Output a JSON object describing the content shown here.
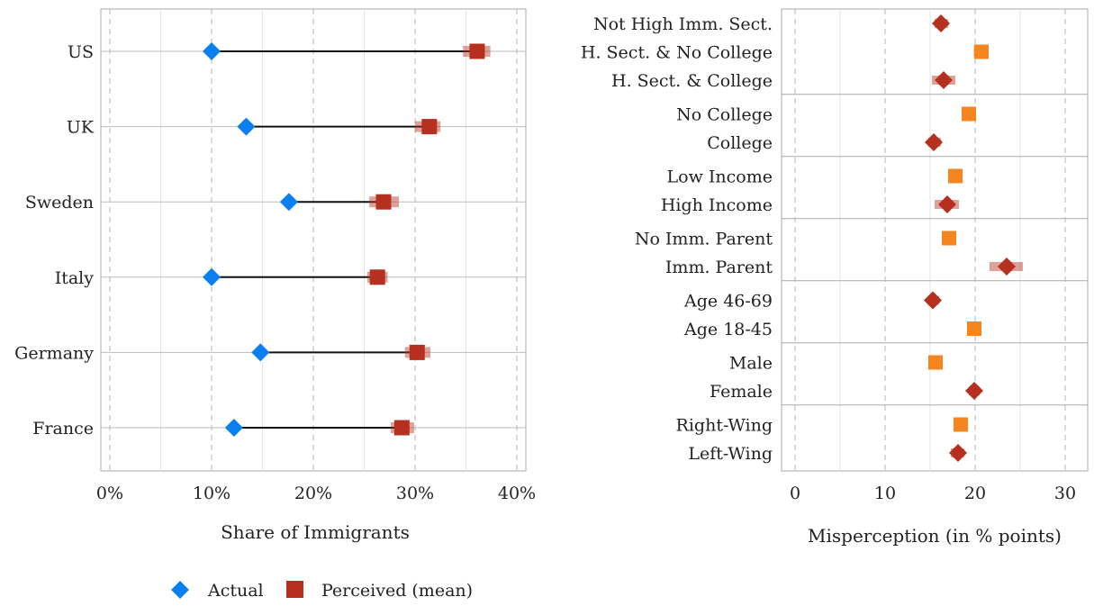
{
  "chart_data": [
    {
      "type": "dumbbell",
      "xlabel": "Share of Immigrants",
      "xlim": [
        0,
        40
      ],
      "xticks": [
        0,
        10,
        20,
        30,
        40
      ],
      "xtick_labels": [
        "0%",
        "10%",
        "20%",
        "30%",
        "40%"
      ],
      "grid": true,
      "categories": [
        "US",
        "UK",
        "Sweden",
        "Italy",
        "Germany",
        "France"
      ],
      "series": [
        {
          "name": "Actual",
          "marker": "diamond",
          "color": "#0a80f0",
          "values": [
            10.0,
            13.4,
            17.6,
            10.0,
            14.8,
            12.2
          ]
        },
        {
          "name": "Perceived (mean)",
          "marker": "square",
          "color": "#b5301f",
          "values": [
            36.1,
            31.4,
            26.9,
            26.3,
            30.2,
            28.7
          ],
          "ci": [
            [
              34.7,
              37.4
            ],
            [
              30.0,
              32.5
            ],
            [
              25.5,
              28.4
            ],
            [
              25.3,
              27.3
            ],
            [
              29.0,
              31.5
            ],
            [
              27.6,
              29.9
            ]
          ]
        }
      ],
      "legend_position": "bottom"
    },
    {
      "type": "dot",
      "xlabel": "Misperception (in % points)",
      "xlim": [
        0,
        31
      ],
      "xticks": [
        0,
        10,
        20,
        30
      ],
      "xtick_labels": [
        "0",
        "10",
        "20",
        "30"
      ],
      "grid": true,
      "groups": [
        {
          "items": [
            {
              "label": "Not High Imm. Sect.",
              "value": 16.2,
              "ci": [
                15.5,
                17.0
              ],
              "marker": "diamond",
              "color": "#b5301f"
            },
            {
              "label": "H. Sect. & No College",
              "value": 20.7,
              "ci": [
                19.8,
                21.5
              ],
              "marker": "square",
              "color": "#f5861f"
            },
            {
              "label": "H. Sect. & College",
              "value": 16.5,
              "ci": [
                15.2,
                17.8
              ],
              "marker": "diamond",
              "color": "#b5301f"
            }
          ]
        },
        {
          "items": [
            {
              "label": "No College",
              "value": 19.3,
              "ci": [
                18.8,
                19.9
              ],
              "marker": "square",
              "color": "#f5861f"
            },
            {
              "label": "College",
              "value": 15.4,
              "ci": [
                14.8,
                16.2
              ],
              "marker": "diamond",
              "color": "#b5301f"
            }
          ]
        },
        {
          "items": [
            {
              "label": "Low Income",
              "value": 17.8,
              "ci": [
                17.2,
                18.4
              ],
              "marker": "square",
              "color": "#f5861f"
            },
            {
              "label": "High Income",
              "value": 16.9,
              "ci": [
                15.5,
                18.2
              ],
              "marker": "diamond",
              "color": "#b5301f"
            }
          ]
        },
        {
          "items": [
            {
              "label": "No Imm. Parent",
              "value": 17.1,
              "ci": [
                16.5,
                17.7
              ],
              "marker": "square",
              "color": "#f5861f"
            },
            {
              "label": "Imm. Parent",
              "value": 23.5,
              "ci": [
                21.6,
                25.3
              ],
              "marker": "diamond",
              "color": "#b5301f"
            }
          ]
        },
        {
          "items": [
            {
              "label": "Age 46-69",
              "value": 15.3,
              "ci": [
                14.7,
                16.0
              ],
              "marker": "diamond",
              "color": "#b5301f"
            },
            {
              "label": "Age 18-45",
              "value": 19.9,
              "ci": [
                19.3,
                20.5
              ],
              "marker": "square",
              "color": "#f5861f"
            }
          ]
        },
        {
          "items": [
            {
              "label": "Male",
              "value": 15.6,
              "ci": [
                14.9,
                16.4
              ],
              "marker": "square",
              "color": "#f5861f"
            },
            {
              "label": "Female",
              "value": 19.9,
              "ci": [
                19.3,
                20.5
              ],
              "marker": "diamond",
              "color": "#b5301f"
            }
          ]
        },
        {
          "items": [
            {
              "label": "Right-Wing",
              "value": 18.4,
              "ci": [
                17.7,
                19.2
              ],
              "marker": "square",
              "color": "#f5861f"
            },
            {
              "label": "Left-Wing",
              "value": 18.1,
              "ci": [
                17.3,
                18.8
              ],
              "marker": "diamond",
              "color": "#b5301f"
            }
          ]
        }
      ]
    }
  ],
  "legend": {
    "items": [
      {
        "label": "Actual",
        "marker": "diamond",
        "color": "#0a80f0"
      },
      {
        "label": "Perceived (mean)",
        "marker": "square",
        "color": "#b5301f"
      }
    ]
  }
}
